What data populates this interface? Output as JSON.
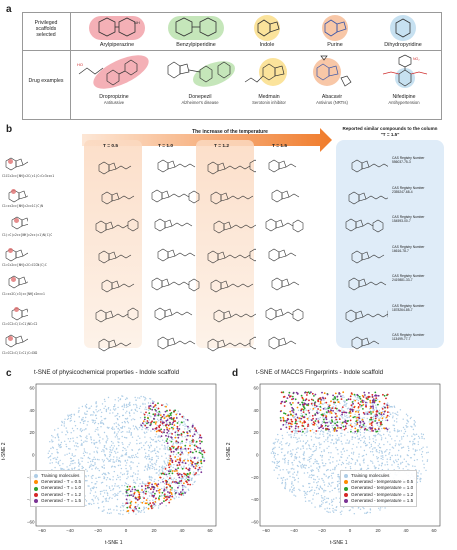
{
  "panel_a": {
    "letter": "a",
    "row_labels": [
      "Privileged scaffolds selected",
      "Drug examples"
    ],
    "scaffolds": [
      {
        "name": "Arylpiperazine",
        "color": "#f19ca4"
      },
      {
        "name": "Benzylpiperidine",
        "color": "#bfe3b2"
      },
      {
        "name": "Indole",
        "color": "#fbe39b"
      },
      {
        "name": "Purine",
        "color": "#f8c7a7"
      },
      {
        "name": "Dihydropyridine",
        "color": "#c7e1f1"
      }
    ],
    "drugs": [
      {
        "name": "Dropropizine",
        "use": "Antitussive"
      },
      {
        "name": "Donepezil",
        "use": "Alzheimer's disease"
      },
      {
        "name": "Medmain",
        "use": "Serotonin inhibitor"
      },
      {
        "name": "Abacavir",
        "use": "Antivirus (NRTIs)"
      },
      {
        "name": "Nifedipine",
        "use": "Antihypertension"
      }
    ]
  },
  "panel_b": {
    "letter": "b",
    "arrow_title": "The increase of the temperature",
    "columns": [
      "T = 0.5",
      "T = 1.0",
      "T = 1.2",
      "T = 1.5"
    ],
    "reported_title": "Reported similar compounds to the column \"T = 1.5\"",
    "smiles": [
      "C1CCc2cc[NH]c2C(c1)C=Cc3ccc1",
      "C1=cc2cc[NH]c2cc1C(C)N",
      "C1(=C)c2cc[NH]c2cc(c1)N(C)C",
      "C1=Cc2cc[NH]c2C=CCCN(C)C",
      "C1=cc2C(c3)cc[NH]c2ncc1",
      "C1=CC2=C(C=C1)NC=C2",
      "C1=CC2=C(C=C1)C=CN2"
    ],
    "cas_label": "CAS Registry Number",
    "cas_numbers": [
      "556037-75-3",
      "2355247-68-4",
      "154593-00-7",
      "16616-78-7",
      "2419881-33-7",
      "1878264-85-7",
      "113499-77-7"
    ]
  },
  "panel_c": {
    "letter": "c",
    "title": "t-SNE of physicochemical properties - Indole scaffold",
    "xlabel": "t-SNE 1",
    "ylabel": "t-SNE 2",
    "legend": [
      "Training molecules",
      "Generated - T = 0.5",
      "Generated - T = 1.0",
      "Generated - T = 1.2",
      "Generated - T = 1.5"
    ],
    "xticks": [
      "−60",
      "−40",
      "−20",
      "0",
      "20",
      "40",
      "60"
    ],
    "yticks": [
      "60",
      "40",
      "20",
      "0",
      "−20",
      "−40",
      "−60"
    ]
  },
  "panel_d": {
    "letter": "d",
    "title": "t-SNE of MACCS Fingerprints - Indole scaffold",
    "xlabel": "t-SNE 1",
    "ylabel": "t-SNE 2",
    "legend": [
      "Training molecules",
      "Generated - temperature = 0.5",
      "Generated - temperature = 1.0",
      "Generated - temperature = 1.2",
      "Generated - temperature = 1.5"
    ],
    "xticks": [
      "−60",
      "−40",
      "−20",
      "0",
      "20",
      "40",
      "60"
    ],
    "yticks": [
      "60",
      "40",
      "20",
      "0",
      "−20",
      "−40",
      "−60"
    ]
  },
  "series_colors": [
    "#aecde6",
    "#ff8c00",
    "#2ca02c",
    "#d62728",
    "#7b3294"
  ]
}
